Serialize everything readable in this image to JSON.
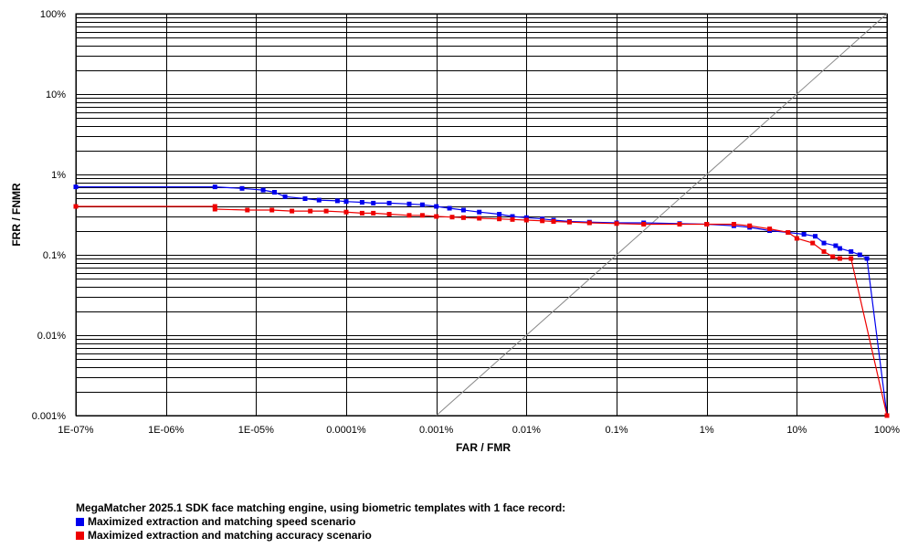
{
  "chart_data": {
    "type": "line",
    "xlabel": "FAR / FMR",
    "ylabel": "FRR / FNMR",
    "x_scale": "log",
    "y_scale": "log",
    "xlim_percent": [
      1e-07,
      100
    ],
    "ylim_percent": [
      0.001,
      100
    ],
    "x_tick_labels": [
      "1E-07%",
      "1E-06%",
      "1E-05%",
      "0.0001%",
      "0.001%",
      "0.01%",
      "0.1%",
      "1%",
      "10%",
      "100%"
    ],
    "y_tick_labels": [
      "100%",
      "10%",
      "1%",
      "0.1%",
      "0.01%",
      "0.001%"
    ],
    "grid": true,
    "legend_title": "MegaMatcher 2025.1 SDK face matching engine, using biometric templates with 1 face record:",
    "series": [
      {
        "name": "Maximized extraction and matching speed scenario",
        "color": "#0000ee",
        "points": [
          [
            1e-07,
            0.7
          ],
          [
            3.5e-06,
            0.7
          ],
          [
            7e-06,
            0.67
          ],
          [
            1.2e-05,
            0.64
          ],
          [
            1.6e-05,
            0.6
          ],
          [
            2.1e-05,
            0.53
          ],
          [
            3.5e-05,
            0.5
          ],
          [
            5e-05,
            0.48
          ],
          [
            8e-05,
            0.47
          ],
          [
            0.0001,
            0.46
          ],
          [
            0.00015,
            0.45
          ],
          [
            0.0002,
            0.44
          ],
          [
            0.0003,
            0.44
          ],
          [
            0.0005,
            0.43
          ],
          [
            0.0007,
            0.42
          ],
          [
            0.001,
            0.4
          ],
          [
            0.0014,
            0.38
          ],
          [
            0.002,
            0.36
          ],
          [
            0.003,
            0.34
          ],
          [
            0.005,
            0.32
          ],
          [
            0.007,
            0.3
          ],
          [
            0.01,
            0.29
          ],
          [
            0.015,
            0.28
          ],
          [
            0.02,
            0.27
          ],
          [
            0.03,
            0.26
          ],
          [
            0.05,
            0.255
          ],
          [
            0.1,
            0.25
          ],
          [
            0.2,
            0.25
          ],
          [
            0.5,
            0.245
          ],
          [
            1,
            0.24
          ],
          [
            2,
            0.23
          ],
          [
            3,
            0.22
          ],
          [
            5,
            0.2
          ],
          [
            8,
            0.19
          ],
          [
            12,
            0.18
          ],
          [
            16,
            0.17
          ],
          [
            20,
            0.14
          ],
          [
            27,
            0.13
          ],
          [
            30,
            0.12
          ],
          [
            40,
            0.11
          ],
          [
            50,
            0.1
          ],
          [
            60,
            0.09
          ],
          [
            100,
            0.001
          ]
        ]
      },
      {
        "name": "Maximized extraction and matching accuracy scenario",
        "color": "#ee0000",
        "points": [
          [
            1e-07,
            0.4
          ],
          [
            3.5e-06,
            0.4
          ],
          [
            3.5e-06,
            0.37
          ],
          [
            8e-06,
            0.36
          ],
          [
            1.5e-05,
            0.36
          ],
          [
            2.5e-05,
            0.35
          ],
          [
            4e-05,
            0.35
          ],
          [
            6e-05,
            0.35
          ],
          [
            0.0001,
            0.34
          ],
          [
            0.00015,
            0.33
          ],
          [
            0.0002,
            0.33
          ],
          [
            0.0003,
            0.32
          ],
          [
            0.0005,
            0.31
          ],
          [
            0.0007,
            0.31
          ],
          [
            0.001,
            0.3
          ],
          [
            0.0015,
            0.295
          ],
          [
            0.002,
            0.29
          ],
          [
            0.003,
            0.285
          ],
          [
            0.005,
            0.28
          ],
          [
            0.007,
            0.275
          ],
          [
            0.01,
            0.27
          ],
          [
            0.015,
            0.265
          ],
          [
            0.02,
            0.26
          ],
          [
            0.03,
            0.255
          ],
          [
            0.05,
            0.25
          ],
          [
            0.1,
            0.245
          ],
          [
            0.2,
            0.24
          ],
          [
            0.5,
            0.24
          ],
          [
            1,
            0.24
          ],
          [
            2,
            0.24
          ],
          [
            3,
            0.23
          ],
          [
            5,
            0.21
          ],
          [
            8,
            0.19
          ],
          [
            10,
            0.16
          ],
          [
            15,
            0.14
          ],
          [
            20,
            0.11
          ],
          [
            25,
            0.095
          ],
          [
            30,
            0.09
          ],
          [
            40,
            0.09
          ],
          [
            100,
            0.001
          ]
        ]
      }
    ]
  }
}
